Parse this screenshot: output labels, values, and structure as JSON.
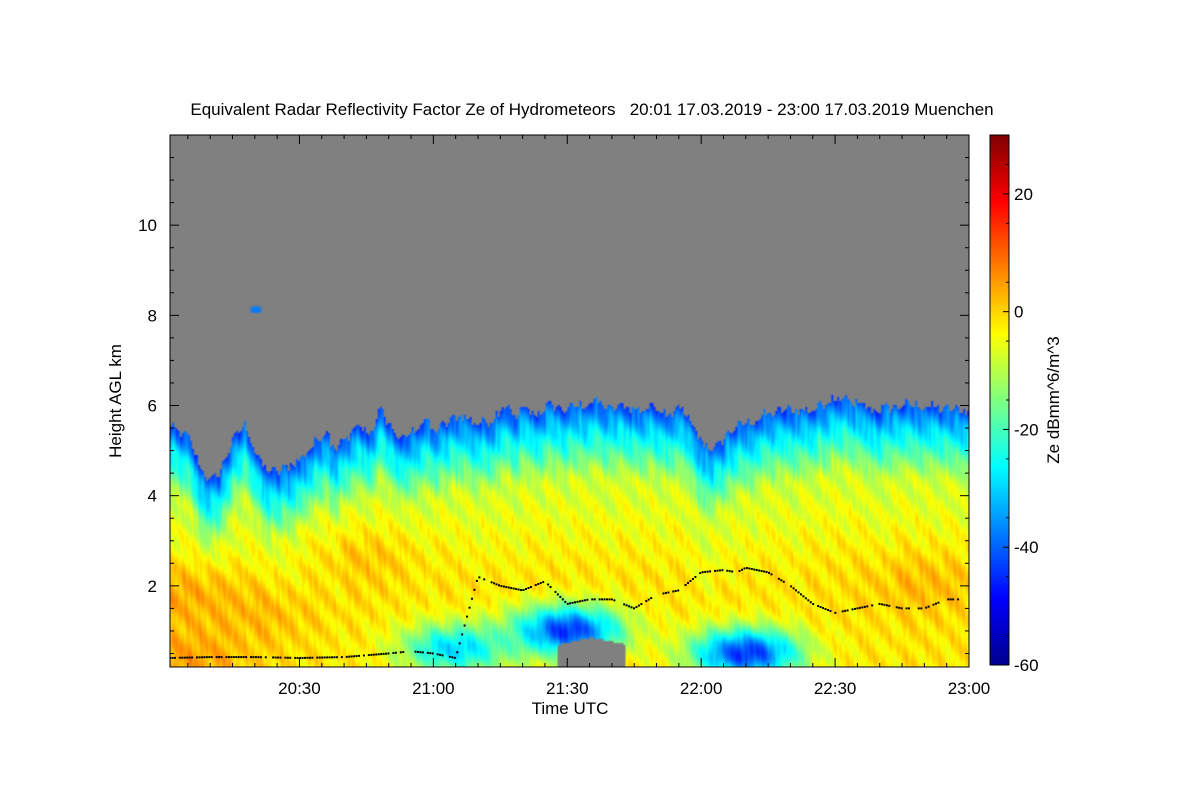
{
  "chart_data": {
    "type": "heatmap",
    "title": "Equivalent Radar Reflectivity Factor Ze of Hydrometeors   20:01 17.03.2019 - 23:00 17.03.2019 Muenchen",
    "xlabel": "Time UTC",
    "ylabel": "Height AGL km",
    "colorbar_label": "Ze dBmm^6/m^3",
    "x_range_minutes": [
      1,
      180
    ],
    "y_range_km": [
      0.2,
      12.0
    ],
    "z_range_dbz": [
      -60,
      30
    ],
    "x_ticks": [
      {
        "minute": 30,
        "label": "20:30"
      },
      {
        "minute": 60,
        "label": "21:00"
      },
      {
        "minute": 90,
        "label": "21:30"
      },
      {
        "minute": 120,
        "label": "22:00"
      },
      {
        "minute": 150,
        "label": "22:30"
      },
      {
        "minute": 180,
        "label": "23:00"
      }
    ],
    "y_ticks": [
      {
        "km": 2,
        "label": "2"
      },
      {
        "km": 4,
        "label": "4"
      },
      {
        "km": 6,
        "label": "6"
      },
      {
        "km": 8,
        "label": "8"
      },
      {
        "km": 10,
        "label": "10"
      }
    ],
    "colorbar_ticks": [
      {
        "dbz": 20,
        "label": "20"
      },
      {
        "dbz": 0,
        "label": "0"
      },
      {
        "dbz": -20,
        "label": "-20"
      },
      {
        "dbz": -40,
        "label": "-40"
      },
      {
        "dbz": -60,
        "label": "-60"
      }
    ],
    "no_signal_color": "#808080",
    "colormap": [
      "#00008f",
      "#0000ff",
      "#0080ff",
      "#00ffff",
      "#80ff80",
      "#ffff00",
      "#ff8000",
      "#ff0000",
      "#800000"
    ],
    "echo_top_km": {
      "minutes": [
        1,
        5,
        8,
        10,
        12,
        15,
        18,
        20,
        22,
        25,
        28,
        30,
        33,
        36,
        38,
        40,
        43,
        46,
        48,
        50,
        53,
        56,
        58,
        60,
        63,
        66,
        70,
        73,
        76,
        78,
        80,
        83,
        86,
        90,
        93,
        96,
        100,
        103,
        106,
        110,
        113,
        116,
        118,
        120,
        123,
        126,
        130,
        135,
        140,
        145,
        148,
        150,
        155,
        160,
        165,
        170,
        175,
        180
      ],
      "heights": [
        5.5,
        5.3,
        4.6,
        4.3,
        4.5,
        5.2,
        5.6,
        5.0,
        4.6,
        4.5,
        4.7,
        4.8,
        5.1,
        5.5,
        5.0,
        5.2,
        5.5,
        5.4,
        5.9,
        5.6,
        5.2,
        5.5,
        5.7,
        5.4,
        5.6,
        5.8,
        5.6,
        5.7,
        6.0,
        5.7,
        5.9,
        5.8,
        6.0,
        5.9,
        6.0,
        6.1,
        5.9,
        6.0,
        5.9,
        6.0,
        5.8,
        5.9,
        5.5,
        5.2,
        5.0,
        5.4,
        5.6,
        5.8,
        5.9,
        5.9,
        6.1,
        6.2,
        6.0,
        5.9,
        6.0,
        6.0,
        5.9,
        5.9
      ]
    },
    "isolated_echo": {
      "minute": 20,
      "height_km": 8.15,
      "dbz": -38
    },
    "echo_core_dbz": [
      {
        "minute": 5,
        "height_km": 1.8,
        "dbz": 5
      },
      {
        "minute": 20,
        "height_km": 1.4,
        "dbz": 3
      },
      {
        "minute": 45,
        "height_km": 2.6,
        "dbz": 2
      },
      {
        "minute": 170,
        "height_km": 2.0,
        "dbz": 3
      },
      {
        "minute": 5,
        "height_km": 0.35,
        "dbz": 6
      }
    ],
    "weak_echo_regions_dbz": [
      {
        "minute": 90,
        "height_km": 1.0,
        "dbz": -45
      },
      {
        "minute": 130,
        "height_km": 0.5,
        "dbz": -45
      },
      {
        "minute": 65,
        "height_km": 0.6,
        "dbz": -30
      }
    ],
    "no_signal_gap": {
      "minute_range": [
        88,
        103
      ],
      "top_km": 0.85
    },
    "cloud_base_km": {
      "minutes": [
        1,
        10,
        20,
        30,
        40,
        50,
        55,
        60,
        65,
        70,
        75,
        80,
        85,
        90,
        95,
        100,
        105,
        110,
        115,
        120,
        125,
        128,
        130,
        135,
        140,
        145,
        150,
        155,
        160,
        165,
        170,
        175,
        178
      ],
      "heights": [
        0.4,
        0.42,
        0.42,
        0.4,
        0.42,
        0.5,
        0.55,
        0.5,
        0.4,
        2.2,
        2.0,
        1.9,
        2.1,
        1.6,
        1.7,
        1.7,
        1.5,
        1.8,
        1.9,
        2.3,
        2.35,
        2.3,
        2.4,
        2.3,
        2.0,
        1.6,
        1.4,
        1.5,
        1.6,
        1.5,
        1.5,
        1.7,
        1.7
      ]
    }
  }
}
